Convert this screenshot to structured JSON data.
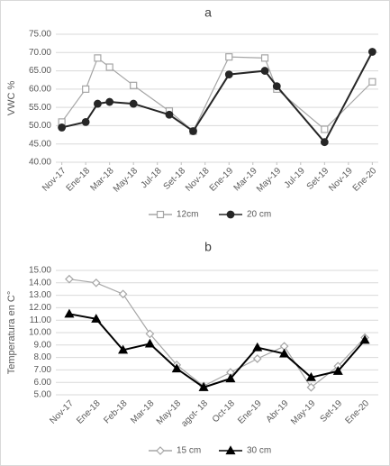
{
  "chart_data": [
    {
      "type": "line",
      "title": "a",
      "y_label": "VWC %",
      "grid": true,
      "xlim": [
        -0.5,
        26.5
      ],
      "xticks": [
        {
          "value": 0,
          "label": "Nov-17"
        },
        {
          "value": 2,
          "label": "Ene-18"
        },
        {
          "value": 4,
          "label": "Mar-18"
        },
        {
          "value": 6,
          "label": "May-18"
        },
        {
          "value": 8,
          "label": "Jul-18"
        },
        {
          "value": 10,
          "label": "Set-18"
        },
        {
          "value": 12,
          "label": "Nov-18"
        },
        {
          "value": 14,
          "label": "Ene-19"
        },
        {
          "value": 16,
          "label": "Mar-19"
        },
        {
          "value": 18,
          "label": "May-19"
        },
        {
          "value": 20,
          "label": "Jul-19"
        },
        {
          "value": 22,
          "label": "Set-19"
        },
        {
          "value": 24,
          "label": "Nov-19"
        },
        {
          "value": 26,
          "label": "Ene-20"
        }
      ],
      "ylim": [
        40,
        75
      ],
      "yticks": [
        {
          "value": 40,
          "label": "40.00"
        },
        {
          "value": 45,
          "label": "45.00"
        },
        {
          "value": 50,
          "label": "50.00"
        },
        {
          "value": 55,
          "label": "55.00"
        },
        {
          "value": 60,
          "label": "60.00"
        },
        {
          "value": 65,
          "label": "65.00"
        },
        {
          "value": 70,
          "label": "70.00"
        },
        {
          "value": 75,
          "label": "75.00"
        }
      ],
      "series": [
        {
          "name": "12cm",
          "color": "#a6a6a6",
          "marker": "square",
          "x": [
            0,
            2,
            3,
            4,
            6,
            9,
            11,
            14,
            17,
            18,
            22,
            26
          ],
          "values": [
            51,
            60,
            68.5,
            66,
            61,
            54,
            48.5,
            68.8,
            68.5,
            60,
            49,
            62
          ]
        },
        {
          "name": "20 cm",
          "color": "#262626",
          "marker": "circle",
          "x": [
            0,
            2,
            3,
            4,
            6,
            9,
            11,
            14,
            17,
            18,
            22,
            26
          ],
          "values": [
            49.5,
            51,
            56,
            56.5,
            56,
            53,
            48.5,
            64,
            65,
            60.8,
            45.5,
            70.2
          ]
        }
      ]
    },
    {
      "type": "line",
      "title": "b",
      "y_label": "Temperatura en C°",
      "grid": true,
      "categories": [
        "Nov-17",
        "Ene-18",
        "Feb-18",
        "Mar-18",
        "May-18",
        "agot- 18",
        "Oct-18",
        "Ene-19",
        "Abr-19",
        "May-19",
        "Set-19",
        "Ene-20"
      ],
      "ylim": [
        5,
        15
      ],
      "yticks": [
        {
          "value": 5,
          "label": "5.00"
        },
        {
          "value": 6,
          "label": "6.00"
        },
        {
          "value": 7,
          "label": "7.00"
        },
        {
          "value": 8,
          "label": "8.00"
        },
        {
          "value": 9,
          "label": "9.00"
        },
        {
          "value": 10,
          "label": "10.00"
        },
        {
          "value": 11,
          "label": "11.00"
        },
        {
          "value": 12,
          "label": "12.00"
        },
        {
          "value": 13,
          "label": "13.00"
        },
        {
          "value": 14,
          "label": "14.00"
        },
        {
          "value": 15,
          "label": "15.00"
        }
      ],
      "series": [
        {
          "name": "15 cm",
          "color": "#a6a6a6",
          "marker": "diamond",
          "values": [
            14.3,
            14.0,
            13.1,
            9.9,
            7.4,
            5.7,
            6.8,
            7.9,
            8.9,
            5.6,
            7.3,
            9.6
          ]
        },
        {
          "name": "30 cm",
          "color": "#000000",
          "marker": "triangle",
          "values": [
            11.5,
            11.1,
            8.6,
            9.1,
            7.1,
            5.6,
            6.3,
            8.8,
            8.3,
            6.4,
            6.9,
            9.4
          ]
        }
      ]
    }
  ]
}
